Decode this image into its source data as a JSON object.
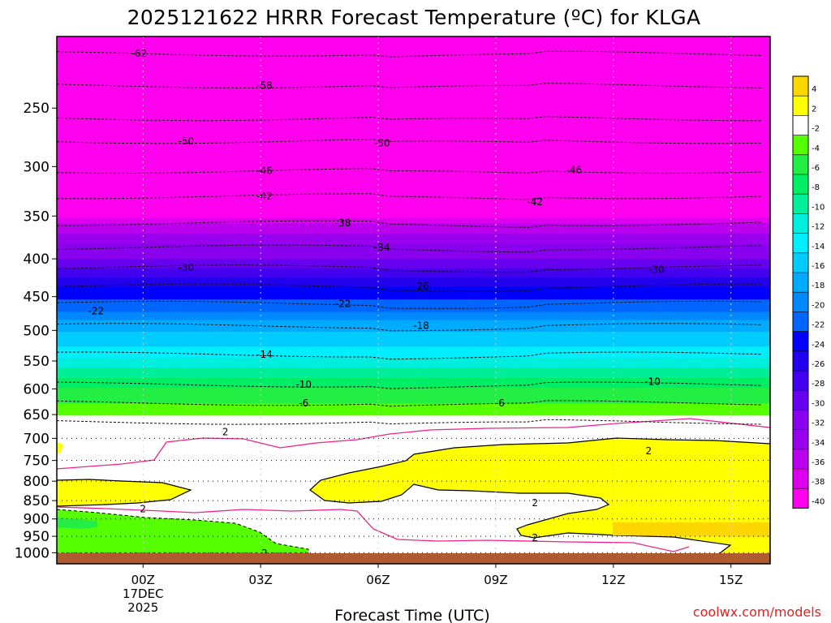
{
  "title": "2025121622 HRRR Forecast Temperature (ºC) for KLGA",
  "credit": "coolwx.com/models",
  "chart_data": {
    "type": "heatmap",
    "title": "2025121622 HRRR Forecast Temperature (ºC) for KLGA",
    "xlabel": "Forecast Time (UTC)",
    "ylabel": "",
    "x_hours": [
      -2.2,
      0,
      3,
      6,
      9,
      12,
      15,
      16
    ],
    "xlim": [
      -2.2,
      16
    ],
    "x_ticks": [
      {
        "hour": 0,
        "label": "00Z",
        "sub1": "17DEC",
        "sub2": "2025"
      },
      {
        "hour": 3,
        "label": "03Z"
      },
      {
        "hour": 6,
        "label": "06Z"
      },
      {
        "hour": 9,
        "label": "09Z"
      },
      {
        "hour": 12,
        "label": "12Z"
      },
      {
        "hour": 15,
        "label": "15Z"
      }
    ],
    "ylim_hPa": [
      1035,
      200
    ],
    "y_ticks": [
      250,
      300,
      350,
      400,
      450,
      500,
      550,
      600,
      650,
      700,
      750,
      800,
      850,
      900,
      950,
      1000
    ],
    "colorbar": {
      "levels": [
        4,
        2,
        -2,
        -4,
        -6,
        -8,
        -10,
        -12,
        -14,
        -16,
        -18,
        -20,
        -22,
        -24,
        -26,
        -28,
        -30,
        -32,
        -34,
        -36,
        -38,
        -40
      ],
      "colors": [
        "#ffd700",
        "#ffff00",
        "#ffffff",
        "#55ff00",
        "#22ee44",
        "#00ee66",
        "#00ee99",
        "#00eedd",
        "#00eeff",
        "#00ccff",
        "#00aaff",
        "#0088ff",
        "#0066ff",
        "#0000ff",
        "#2200ee",
        "#4400ee",
        "#6600ee",
        "#8800ee",
        "#9900ee",
        "#bb00ee",
        "#dd00ee",
        "#ff00ee"
      ]
    },
    "temperature_profile": [
      {
        "p": 230,
        "t": -60
      },
      {
        "p": 265,
        "t": -53
      },
      {
        "p": 300,
        "t": -46
      },
      {
        "p": 340,
        "t": -40
      },
      {
        "p": 370,
        "t": -34
      },
      {
        "p": 405,
        "t": -29
      },
      {
        "p": 445,
        "t": -23
      },
      {
        "p": 495,
        "t": -17
      },
      {
        "p": 545,
        "t": -12
      },
      {
        "p": 600,
        "t": -6
      },
      {
        "p": 640,
        "t": -3
      },
      {
        "p": 680,
        "t": 0
      },
      {
        "p": 760,
        "t": 0
      },
      {
        "p": 830,
        "t": 2
      },
      {
        "p": 880,
        "t": 1
      },
      {
        "p": 940,
        "t": -2
      },
      {
        "p": 1000,
        "t": -1
      }
    ],
    "contour_labels": [
      {
        "hour": -0.1,
        "p": 211,
        "text": "-62"
      },
      {
        "hour": 3.1,
        "p": 233,
        "text": "-58"
      },
      {
        "hour": 1.1,
        "p": 277,
        "text": "-50"
      },
      {
        "hour": 6.1,
        "p": 279,
        "text": "-50"
      },
      {
        "hour": 3.1,
        "p": 304,
        "text": "-46"
      },
      {
        "hour": 11.0,
        "p": 303,
        "text": "-46"
      },
      {
        "hour": 3.1,
        "p": 329,
        "text": "-42"
      },
      {
        "hour": 10.0,
        "p": 335,
        "text": "-42"
      },
      {
        "hour": 5.1,
        "p": 358,
        "text": "-38"
      },
      {
        "hour": 6.1,
        "p": 386,
        "text": "-34"
      },
      {
        "hour": 1.1,
        "p": 411,
        "text": "-30"
      },
      {
        "hour": 13.1,
        "p": 414,
        "text": "-30"
      },
      {
        "hour": 7.1,
        "p": 436,
        "text": "-26"
      },
      {
        "hour": -1.2,
        "p": 471,
        "text": "-22"
      },
      {
        "hour": 5.1,
        "p": 460,
        "text": "-22"
      },
      {
        "hour": 7.1,
        "p": 493,
        "text": "-18"
      },
      {
        "hour": 3.1,
        "p": 539,
        "text": "-14"
      },
      {
        "hour": 4.1,
        "p": 592,
        "text": "-10"
      },
      {
        "hour": 13.0,
        "p": 587,
        "text": "-10"
      },
      {
        "hour": 4.1,
        "p": 627,
        "text": "-6"
      },
      {
        "hour": 9.1,
        "p": 627,
        "text": "-6"
      },
      {
        "hour": 2.1,
        "p": 686,
        "text": "2"
      },
      {
        "hour": 12.9,
        "p": 728,
        "text": "2"
      },
      {
        "hour": 10.0,
        "p": 856,
        "text": "2"
      },
      {
        "hour": -0.0,
        "p": 873,
        "text": "2"
      },
      {
        "hour": 10.0,
        "p": 955,
        "text": "2"
      },
      {
        "hour": 3.1,
        "p": 1001,
        "text": "2"
      }
    ]
  }
}
